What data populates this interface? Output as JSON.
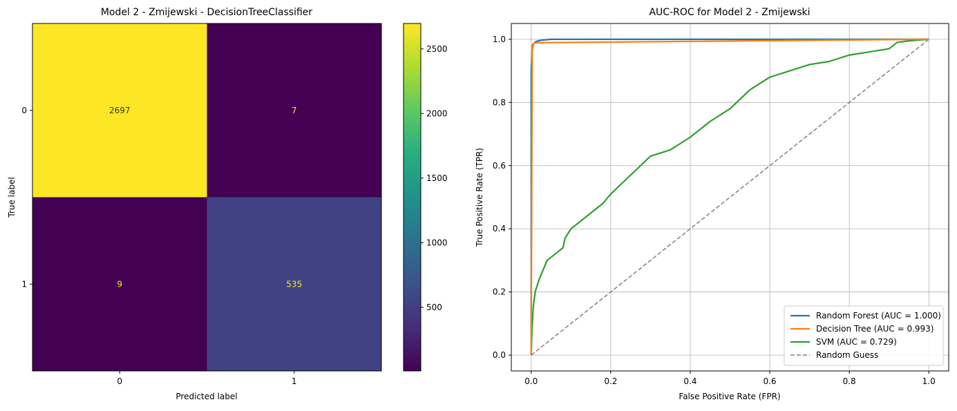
{
  "chart_data": [
    {
      "type": "heatmap",
      "title": "Model 2 - Zmijewski - DecisionTreeClassifier",
      "xlabel": "Predicted label",
      "ylabel": "True label",
      "x_categories": [
        "0",
        "1"
      ],
      "y_categories": [
        "0",
        "1"
      ],
      "matrix": [
        [
          2697,
          7
        ],
        [
          9,
          535
        ]
      ],
      "colormap": "viridis",
      "colorbar": {
        "range": [
          7,
          2697
        ],
        "ticks": [
          500,
          1000,
          1500,
          2000,
          2500
        ],
        "tick_labels": [
          "500",
          "1000",
          "1500",
          "2000",
          "2500"
        ]
      },
      "text_colors": {
        "light_cell": "#333333",
        "dark_cell": "#fde725"
      }
    },
    {
      "type": "line",
      "title": "AUC-ROC for Model 2 - Zmijewski",
      "xlabel": "False Positive Rate (FPR)",
      "ylabel": "True Positive Rate (TPR)",
      "xlim": [
        -0.05,
        1.05
      ],
      "ylim": [
        -0.05,
        1.05
      ],
      "xticks": [
        "0.0",
        "0.2",
        "0.4",
        "0.6",
        "0.8",
        "1.0"
      ],
      "yticks": [
        "0.0",
        "0.2",
        "0.4",
        "0.6",
        "0.8",
        "1.0"
      ],
      "grid": true,
      "legend": "lower-right",
      "series": [
        {
          "name": "Random Forest (AUC = 1.000)",
          "color": "#1f77b4",
          "style": "solid",
          "points": [
            [
              0,
              0
            ],
            [
              0,
              0.9
            ],
            [
              0.002,
              0.96
            ],
            [
              0.005,
              0.985
            ],
            [
              0.012,
              0.993
            ],
            [
              0.025,
              0.997
            ],
            [
              0.05,
              1.0
            ],
            [
              1.0,
              1.0
            ]
          ]
        },
        {
          "name": "Decision Tree (AUC = 0.993)",
          "color": "#ff7f0e",
          "style": "solid",
          "points": [
            [
              0,
              0
            ],
            [
              0.0026,
              0.983
            ],
            [
              0.01,
              0.989
            ],
            [
              1.0,
              1.0
            ]
          ]
        },
        {
          "name": "SVM (AUC = 0.729)",
          "color": "#2ca02c",
          "style": "solid",
          "points": [
            [
              0,
              0
            ],
            [
              0.002,
              0.08
            ],
            [
              0.005,
              0.15
            ],
            [
              0.01,
              0.2
            ],
            [
              0.02,
              0.24
            ],
            [
              0.03,
              0.27
            ],
            [
              0.04,
              0.3
            ],
            [
              0.06,
              0.32
            ],
            [
              0.08,
              0.34
            ],
            [
              0.085,
              0.37
            ],
            [
              0.1,
              0.4
            ],
            [
              0.12,
              0.42
            ],
            [
              0.15,
              0.45
            ],
            [
              0.18,
              0.48
            ],
            [
              0.2,
              0.51
            ],
            [
              0.25,
              0.57
            ],
            [
              0.3,
              0.63
            ],
            [
              0.35,
              0.65
            ],
            [
              0.4,
              0.69
            ],
            [
              0.45,
              0.74
            ],
            [
              0.5,
              0.78
            ],
            [
              0.55,
              0.84
            ],
            [
              0.6,
              0.88
            ],
            [
              0.65,
              0.9
            ],
            [
              0.7,
              0.92
            ],
            [
              0.75,
              0.93
            ],
            [
              0.8,
              0.95
            ],
            [
              0.85,
              0.96
            ],
            [
              0.9,
              0.97
            ],
            [
              0.92,
              0.99
            ],
            [
              0.95,
              0.995
            ],
            [
              1.0,
              1.0
            ]
          ]
        },
        {
          "name": "Random Guess",
          "color": "#808080",
          "style": "dashed",
          "points": [
            [
              0,
              0
            ],
            [
              1,
              1
            ]
          ]
        }
      ]
    }
  ]
}
